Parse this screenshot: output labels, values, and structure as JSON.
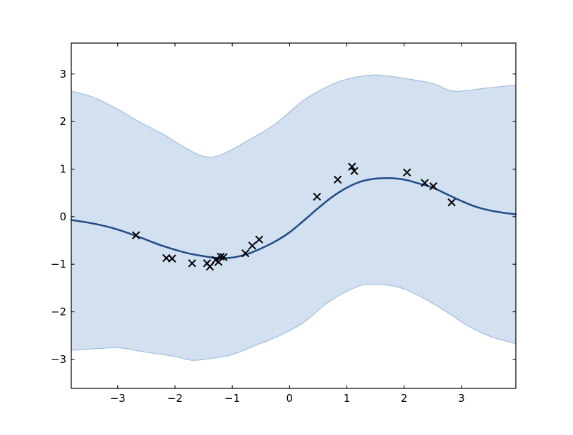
{
  "figure": {
    "background_color": "#ffffff",
    "title": ""
  },
  "chart_data": {
    "type": "line",
    "subtype": "gp-regression (mean line + confidence band + scatter observations)",
    "title": "",
    "xlabel": "",
    "ylabel": "",
    "xlim": [
      -3.81,
      3.95
    ],
    "ylim": [
      -3.61,
      3.65
    ],
    "grid": false,
    "legend": null,
    "x_ticks": [
      -3,
      -2,
      -1,
      0,
      1,
      2,
      3
    ],
    "x_tick_labels": [
      "−3",
      "−2",
      "−1",
      "0",
      "1",
      "2",
      "3"
    ],
    "y_ticks": [
      -3,
      -2,
      -1,
      0,
      1,
      2,
      3
    ],
    "y_tick_labels": [
      "−3",
      "−2",
      "−1",
      "0",
      "1",
      "2",
      "3"
    ],
    "colors": {
      "mean_line": "#204a87",
      "band_edge": "#729fcf",
      "band_fill": "#729fcf",
      "band_fill_opacity": 0.32,
      "band_edge_opacity": 0.7,
      "marker": "#000000",
      "axis": "#000000"
    },
    "series": [
      {
        "name": "gp-mean",
        "type": "line",
        "color": "#204a87",
        "line_width": 2.5,
        "points": [
          [
            -3.81,
            -0.07
          ],
          [
            -3.4,
            -0.15
          ],
          [
            -3.0,
            -0.27
          ],
          [
            -2.6,
            -0.44
          ],
          [
            -2.2,
            -0.62
          ],
          [
            -1.8,
            -0.76
          ],
          [
            -1.5,
            -0.83
          ],
          [
            -1.25,
            -0.87
          ],
          [
            -1.0,
            -0.86
          ],
          [
            -0.75,
            -0.79
          ],
          [
            -0.5,
            -0.67
          ],
          [
            -0.25,
            -0.52
          ],
          [
            0.0,
            -0.33
          ],
          [
            0.25,
            -0.08
          ],
          [
            0.5,
            0.18
          ],
          [
            0.75,
            0.42
          ],
          [
            1.0,
            0.61
          ],
          [
            1.25,
            0.74
          ],
          [
            1.5,
            0.8
          ],
          [
            1.75,
            0.81
          ],
          [
            2.0,
            0.78
          ],
          [
            2.25,
            0.7
          ],
          [
            2.5,
            0.61
          ],
          [
            2.75,
            0.47
          ],
          [
            3.0,
            0.33
          ],
          [
            3.25,
            0.21
          ],
          [
            3.5,
            0.13
          ],
          [
            3.75,
            0.08
          ],
          [
            3.95,
            0.05
          ]
        ]
      },
      {
        "name": "confidence-band-upper",
        "type": "band-boundary",
        "color": "#729fcf",
        "points": [
          [
            -3.81,
            2.64
          ],
          [
            -3.4,
            2.5
          ],
          [
            -3.0,
            2.26
          ],
          [
            -2.6,
            1.98
          ],
          [
            -2.2,
            1.73
          ],
          [
            -1.85,
            1.47
          ],
          [
            -1.5,
            1.27
          ],
          [
            -1.2,
            1.3
          ],
          [
            -0.7,
            1.62
          ],
          [
            -0.25,
            1.95
          ],
          [
            0.25,
            2.45
          ],
          [
            0.72,
            2.77
          ],
          [
            1.1,
            2.92
          ],
          [
            1.5,
            2.98
          ],
          [
            2.0,
            2.91
          ],
          [
            2.5,
            2.8
          ],
          [
            2.87,
            2.64
          ],
          [
            3.4,
            2.7
          ],
          [
            3.95,
            2.77
          ]
        ]
      },
      {
        "name": "confidence-band-lower",
        "type": "band-boundary",
        "color": "#729fcf",
        "points": [
          [
            -3.81,
            -2.81
          ],
          [
            -3.3,
            -2.77
          ],
          [
            -2.96,
            -2.76
          ],
          [
            -2.5,
            -2.85
          ],
          [
            -2.0,
            -2.94
          ],
          [
            -1.69,
            -3.02
          ],
          [
            -1.3,
            -2.97
          ],
          [
            -1.0,
            -2.9
          ],
          [
            -0.62,
            -2.72
          ],
          [
            -0.21,
            -2.52
          ],
          [
            0.24,
            -2.23
          ],
          [
            0.65,
            -1.82
          ],
          [
            1.07,
            -1.53
          ],
          [
            1.39,
            -1.42
          ],
          [
            1.89,
            -1.48
          ],
          [
            2.3,
            -1.69
          ],
          [
            2.71,
            -1.98
          ],
          [
            3.12,
            -2.3
          ],
          [
            3.53,
            -2.53
          ],
          [
            3.95,
            -2.67
          ]
        ]
      },
      {
        "name": "observations",
        "type": "scatter",
        "marker": "x",
        "color": "#000000",
        "marker_size": 10,
        "points": [
          [
            -2.68,
            -0.39
          ],
          [
            -2.15,
            -0.87
          ],
          [
            -2.05,
            -0.88
          ],
          [
            -1.7,
            -0.98
          ],
          [
            -1.44,
            -0.98
          ],
          [
            -1.39,
            -1.05
          ],
          [
            -1.29,
            -0.91
          ],
          [
            -1.24,
            -0.95
          ],
          [
            -1.2,
            -0.84
          ],
          [
            -1.15,
            -0.85
          ],
          [
            -0.77,
            -0.77
          ],
          [
            -0.65,
            -0.61
          ],
          [
            -0.53,
            -0.48
          ],
          [
            0.48,
            0.42
          ],
          [
            0.84,
            0.78
          ],
          [
            1.09,
            1.05
          ],
          [
            1.13,
            0.96
          ],
          [
            2.05,
            0.93
          ],
          [
            2.36,
            0.71
          ],
          [
            2.51,
            0.64
          ],
          [
            2.83,
            0.3
          ]
        ]
      }
    ]
  }
}
